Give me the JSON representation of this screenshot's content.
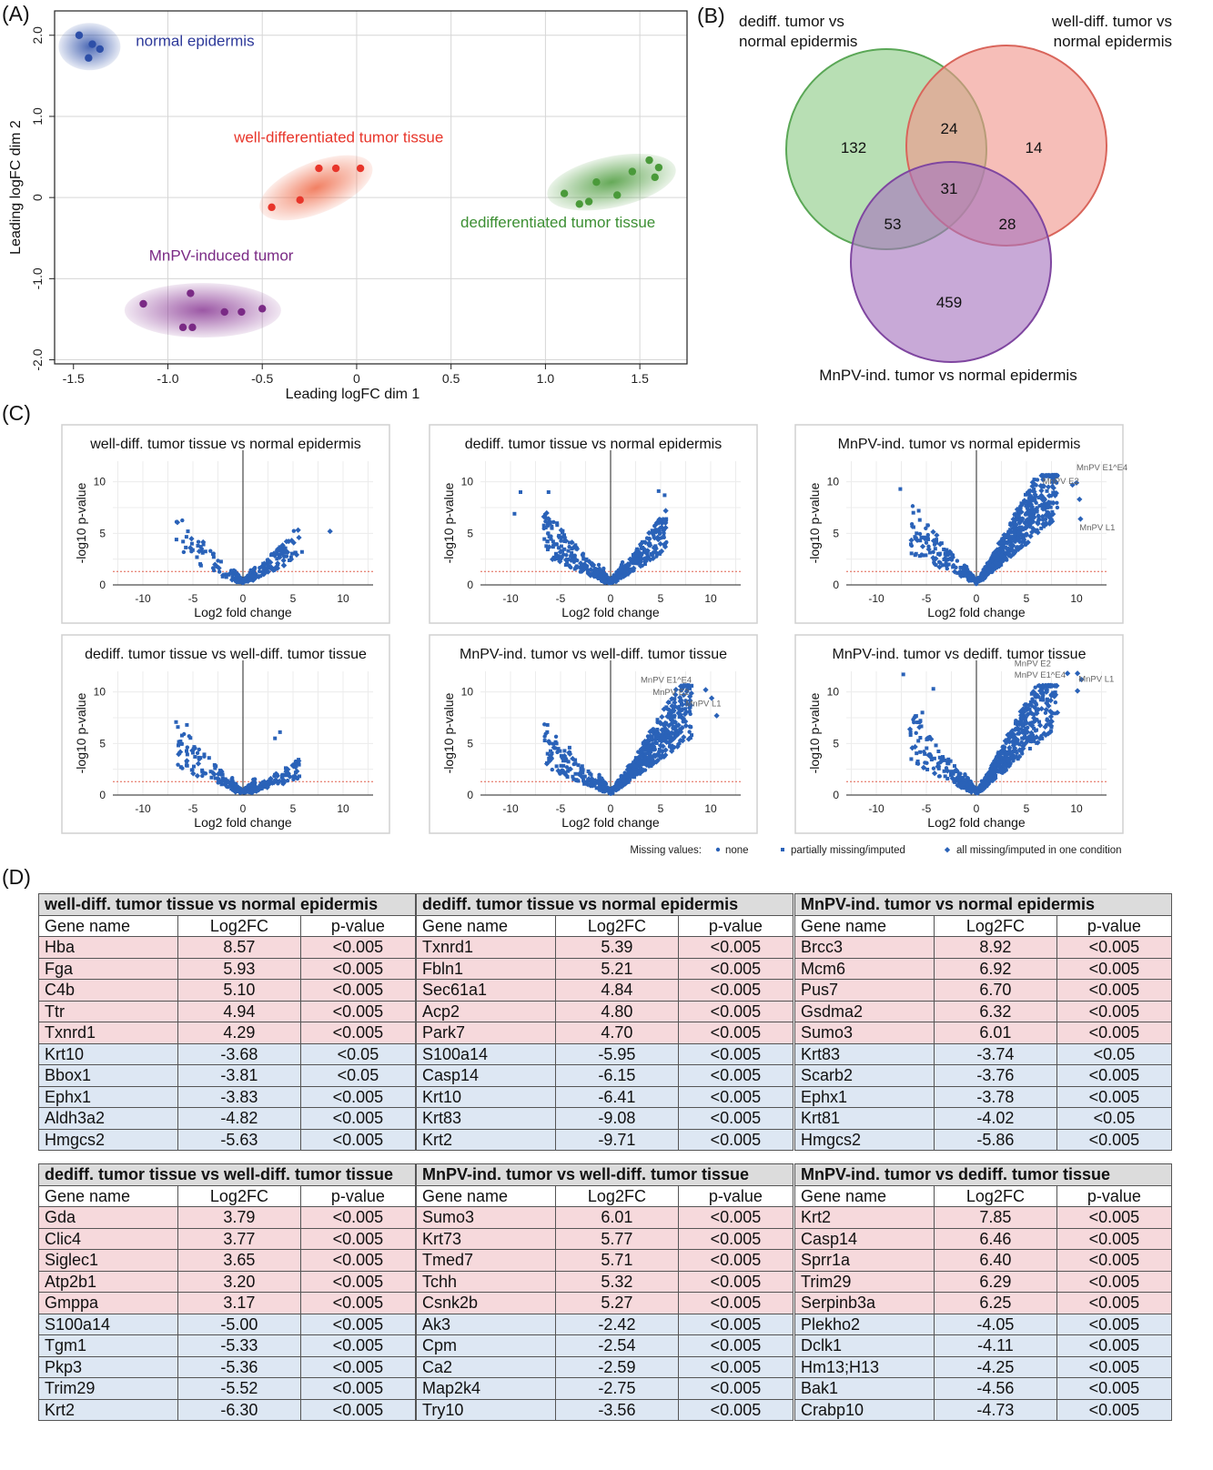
{
  "panel_labels": {
    "a": "(A)",
    "b": "(B)",
    "c": "(C)",
    "d": "(D)"
  },
  "chart_data": [
    {
      "type": "scatter",
      "panel": "A",
      "xlabel": "Leading logFC dim 1",
      "ylabel": "Leading logFC dim 2",
      "xlim": [
        -1.6,
        1.75
      ],
      "ylim": [
        -2.05,
        2.3
      ],
      "xticks": [
        "-1.5",
        "-1.0",
        "-0.5",
        "0",
        "0.5",
        "1.0",
        "1.5"
      ],
      "xtick_values": [
        -1.5,
        -1.0,
        -0.5,
        0,
        0.5,
        1.0,
        1.5
      ],
      "yticks": [
        "-2.0",
        "-1.0",
        "0",
        "1.0",
        "2.0"
      ],
      "ytick_values": [
        -2.0,
        -1.0,
        0,
        1.0,
        2.0
      ],
      "grid": true,
      "series": [
        {
          "name": "normal epidermis",
          "color": "#2d4fa8",
          "points": [
            [
              -1.47,
              2.0
            ],
            [
              -1.4,
              1.89
            ],
            [
              -1.36,
              1.83
            ],
            [
              -1.42,
              1.72
            ]
          ]
        },
        {
          "name": "well-differentiated tumor tissue",
          "color": "#e8352a",
          "points": [
            [
              -0.45,
              -0.12
            ],
            [
              -0.3,
              -0.03
            ],
            [
              -0.2,
              0.36
            ],
            [
              -0.11,
              0.36
            ],
            [
              0.02,
              0.36
            ]
          ]
        },
        {
          "name": "dedifferentiated tumor tissue",
          "color": "#4a9a3a",
          "points": [
            [
              1.1,
              0.05
            ],
            [
              1.18,
              -0.08
            ],
            [
              1.23,
              -0.05
            ],
            [
              1.27,
              0.19
            ],
            [
              1.38,
              0.03
            ],
            [
              1.46,
              0.32
            ],
            [
              1.55,
              0.46
            ],
            [
              1.58,
              0.25
            ],
            [
              1.6,
              0.37
            ]
          ]
        },
        {
          "name": "MnPV-induced tumor",
          "color": "#7a2a85",
          "points": [
            [
              -1.13,
              -1.31
            ],
            [
              -0.88,
              -1.18
            ],
            [
              -0.92,
              -1.6
            ],
            [
              -0.87,
              -1.6
            ],
            [
              -0.7,
              -1.41
            ],
            [
              -0.61,
              -1.41
            ],
            [
              -0.5,
              -1.37
            ]
          ]
        }
      ]
    },
    {
      "type": "venn",
      "panel": "B",
      "sets": [
        "dediff. tumor vs normal epidermis",
        "well-diff. tumor vs normal epidermis",
        "MnPV-ind. tumor vs normal epidermis"
      ],
      "set_title_lines": [
        [
          "dediff. tumor vs",
          "normal epidermis"
        ],
        [
          "well-diff. tumor vs",
          "normal epidermis"
        ],
        [
          "MnPV-ind. tumor vs normal epidermis"
        ]
      ],
      "counts": {
        "dediff_only": 132,
        "welldiff_only": 14,
        "mnpv_only": 459,
        "dediff_welldiff": 24,
        "dediff_mnpv": 53,
        "welldiff_mnpv": 28,
        "all_three": 31
      },
      "colors": [
        "#7fc27b",
        "#ee857b",
        "#9b66b5"
      ]
    },
    {
      "type": "scatter",
      "panel": "C",
      "subtype": "volcano",
      "xlabel": "Log2 fold change",
      "ylabel": "-log10 p-value",
      "xlim": [
        -13,
        13
      ],
      "ylim": [
        0,
        12
      ],
      "xticks": [
        "-10",
        "-5",
        "0",
        "5",
        "10"
      ],
      "xtick_values": [
        -10,
        -5,
        0,
        5,
        10
      ],
      "yticks": [
        "0",
        "5",
        "10"
      ],
      "ytick_values": [
        0,
        5,
        10
      ],
      "threshold": 1.3,
      "plots": [
        {
          "title": "well-diff. tumor tissue vs normal epidermis",
          "left": 2.0,
          "right": 1.4,
          "amp": 1.1,
          "nL": 55,
          "nR": 95,
          "outliers": [
            [
              -5.5,
              5.2
            ],
            [
              -5.1,
              4.0
            ],
            [
              -4.2,
              3.7
            ],
            [
              8.7,
              5.2
            ],
            [
              5.9,
              3.2
            ]
          ],
          "annotations": []
        },
        {
          "title": "dediff. tumor tissue vs normal epidermis",
          "left": 2.3,
          "right": 1.35,
          "amp": 1.35,
          "nL": 190,
          "nR": 190,
          "outliers": [
            [
              -9.6,
              6.9
            ],
            [
              -9.0,
              9.0
            ],
            [
              -6.2,
              9.0
            ],
            [
              4.8,
              9.1
            ],
            [
              5.4,
              8.7
            ],
            [
              5.3,
              4.7
            ]
          ],
          "annotations": []
        },
        {
          "title": "MnPV-ind. tumor vs normal epidermis",
          "left": 2.0,
          "right": 0.95,
          "amp": 1.3,
          "nL": 120,
          "nR": 520,
          "outliers": [
            [
              -7.6,
              9.3
            ],
            [
              -6.3,
              7.0
            ],
            [
              -5.5,
              4.6
            ],
            [
              10.0,
              9.9
            ],
            [
              10.3,
              8.3
            ],
            [
              9.6,
              9.7
            ],
            [
              10.4,
              6.4
            ]
          ],
          "annotations": [
            {
              "text": "MnPV E1^E4",
              "x": 10.0,
              "y": 11.1
            },
            {
              "text": "MnPV E2",
              "x": 6.6,
              "y": 9.8
            },
            {
              "text": "MnPV L1",
              "x": 10.3,
              "y": 5.3
            }
          ]
        },
        {
          "title": "dediff. tumor tissue vs well-diff. tumor tissue",
          "left": 1.7,
          "right": 2.0,
          "amp": 0.95,
          "nL": 110,
          "nR": 110,
          "outliers": [
            [
              -6.5,
              6.6
            ],
            [
              -5.6,
              6.8
            ],
            [
              3.7,
              6.1
            ],
            [
              3.2,
              5.5
            ]
          ],
          "annotations": []
        },
        {
          "title": "MnPV-ind. tumor vs well-diff. tumor tissue",
          "left": 2.2,
          "right": 1.0,
          "amp": 1.2,
          "nL": 130,
          "nR": 420,
          "outliers": [
            [
              -6.3,
              6.8
            ],
            [
              -5.4,
              5.0
            ],
            [
              -4.1,
              4.6
            ],
            [
              9.5,
              10.2
            ],
            [
              10.1,
              9.4
            ],
            [
              10.6,
              7.7
            ]
          ],
          "annotations": [
            {
              "text": "MnPV E1^E4",
              "x": 3.0,
              "y": 10.9
            },
            {
              "text": "MnPV E2",
              "x": 4.2,
              "y": 9.7
            },
            {
              "text": "MnPV L1",
              "x": 7.5,
              "y": 8.6
            }
          ]
        },
        {
          "title": "MnPV-ind. tumor vs dediff. tumor tissue",
          "left": 2.0,
          "right": 0.95,
          "amp": 1.35,
          "nL": 140,
          "nR": 440,
          "outliers": [
            [
              -7.3,
              11.7
            ],
            [
              -4.3,
              10.3
            ],
            [
              -5.4,
              8.0
            ],
            [
              9.1,
              12.1
            ],
            [
              10.1,
              12.4
            ],
            [
              10.5,
              11.2
            ],
            [
              10.1,
              10.1
            ]
          ],
          "annotations": [
            {
              "text": "MnPV E2",
              "x": 3.8,
              "y": 12.5
            },
            {
              "text": "MnPV E1^E4",
              "x": 3.8,
              "y": 11.4
            },
            {
              "text": "MnPV L1",
              "x": 10.2,
              "y": 11.0
            }
          ]
        }
      ],
      "legend": {
        "title": "Missing values:",
        "items": [
          "none",
          "partially missing/imputed",
          "all missing/imputed in one condition"
        ]
      }
    },
    {
      "type": "table",
      "panel": "D",
      "columns": [
        "Gene name",
        "Log2FC",
        "p-value"
      ],
      "tables": [
        {
          "title": "well-diff. tumor tissue vs normal epidermis",
          "rows": [
            [
              "Hba",
              "8.57",
              "<0.005"
            ],
            [
              "Fga",
              "5.93",
              "<0.005"
            ],
            [
              "C4b",
              "5.10",
              "<0.005"
            ],
            [
              "Ttr",
              "4.94",
              "<0.005"
            ],
            [
              "Txnrd1",
              "4.29",
              "<0.005"
            ],
            [
              "Krt10",
              "-3.68",
              "<0.05"
            ],
            [
              "Bbox1",
              "-3.81",
              "<0.05"
            ],
            [
              "Ephx1",
              "-3.83",
              "<0.005"
            ],
            [
              "Aldh3a2",
              "-4.82",
              "<0.005"
            ],
            [
              "Hmgcs2",
              "-5.63",
              "<0.005"
            ]
          ]
        },
        {
          "title": "dediff. tumor tissue vs normal epidermis",
          "rows": [
            [
              "Txnrd1",
              "5.39",
              "<0.005"
            ],
            [
              "Fbln1",
              "5.21",
              "<0.005"
            ],
            [
              "Sec61a1",
              "4.84",
              "<0.005"
            ],
            [
              "Acp2",
              "4.80",
              "<0.005"
            ],
            [
              "Park7",
              "4.70",
              "<0.005"
            ],
            [
              "S100a14",
              "-5.95",
              "<0.005"
            ],
            [
              "Casp14",
              "-6.15",
              "<0.005"
            ],
            [
              "Krt10",
              "-6.41",
              "<0.005"
            ],
            [
              "Krt83",
              "-9.08",
              "<0.005"
            ],
            [
              "Krt2",
              "-9.71",
              "<0.005"
            ]
          ]
        },
        {
          "title": "MnPV-ind. tumor vs normal epidermis",
          "rows": [
            [
              "Brcc3",
              "8.92",
              "<0.005"
            ],
            [
              "Mcm6",
              "6.92",
              "<0.005"
            ],
            [
              "Pus7",
              "6.70",
              "<0.005"
            ],
            [
              "Gsdma2",
              "6.32",
              "<0.005"
            ],
            [
              "Sumo3",
              "6.01",
              "<0.005"
            ],
            [
              "Krt83",
              "-3.74",
              "<0.05"
            ],
            [
              "Scarb2",
              "-3.76",
              "<0.005"
            ],
            [
              "Ephx1",
              "-3.78",
              "<0.005"
            ],
            [
              "Krt81",
              "-4.02",
              "<0.05"
            ],
            [
              "Hmgcs2",
              "-5.86",
              "<0.005"
            ]
          ]
        },
        {
          "title": "dediff. tumor tissue vs well-diff. tumor tissue",
          "rows": [
            [
              "Gda",
              "3.79",
              "<0.005"
            ],
            [
              "Clic4",
              "3.77",
              "<0.005"
            ],
            [
              "Siglec1",
              "3.65",
              "<0.005"
            ],
            [
              "Atp2b1",
              "3.20",
              "<0.005"
            ],
            [
              "Gmppa",
              "3.17",
              "<0.005"
            ],
            [
              "S100a14",
              "-5.00",
              "<0.005"
            ],
            [
              "Tgm1",
              "-5.33",
              "<0.005"
            ],
            [
              "Pkp3",
              "-5.36",
              "<0.005"
            ],
            [
              "Trim29",
              "-5.52",
              "<0.005"
            ],
            [
              "Krt2",
              "-6.30",
              "<0.005"
            ]
          ]
        },
        {
          "title": "MnPV-ind. tumor vs well-diff. tumor tissue",
          "rows": [
            [
              "Sumo3",
              "6.01",
              "<0.005"
            ],
            [
              "Krt73",
              "5.77",
              "<0.005"
            ],
            [
              "Tmed7",
              "5.71",
              "<0.005"
            ],
            [
              "Tchh",
              "5.32",
              "<0.005"
            ],
            [
              "Csnk2b",
              "5.27",
              "<0.005"
            ],
            [
              "Ak3",
              "-2.42",
              "<0.005"
            ],
            [
              "Cpm",
              "-2.54",
              "<0.005"
            ],
            [
              "Ca2",
              "-2.59",
              "<0.005"
            ],
            [
              "Map2k4",
              "-2.75",
              "<0.005"
            ],
            [
              "Try10",
              "-3.56",
              "<0.005"
            ]
          ]
        },
        {
          "title": "MnPV-ind. tumor vs dediff. tumor tissue",
          "rows": [
            [
              "Krt2",
              "7.85",
              "<0.005"
            ],
            [
              "Casp14",
              "6.46",
              "<0.005"
            ],
            [
              "Sprr1a",
              "6.40",
              "<0.005"
            ],
            [
              "Trim29",
              "6.29",
              "<0.005"
            ],
            [
              "Serpinb3a",
              "6.25",
              "<0.005"
            ],
            [
              "Plekho2",
              "-4.05",
              "<0.005"
            ],
            [
              "Dclk1",
              "-4.11",
              "<0.005"
            ],
            [
              "Hm13;H13",
              "-4.25",
              "<0.005"
            ],
            [
              "Bak1",
              "-4.56",
              "<0.005"
            ],
            [
              "Crabp10",
              "-4.73",
              "<0.005"
            ]
          ]
        }
      ]
    }
  ]
}
